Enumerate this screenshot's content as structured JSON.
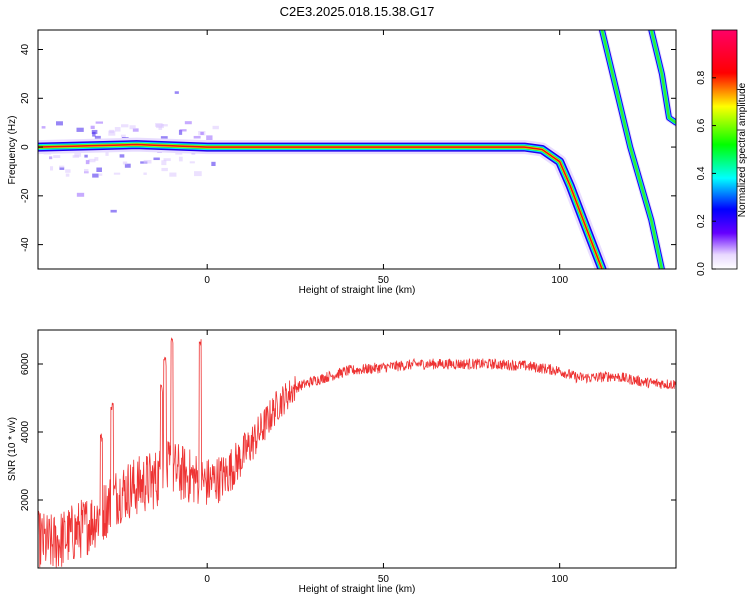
{
  "figure": {
    "title": "C2E3.2025.018.15.38.G17"
  },
  "colors": {
    "snr_line": "#ee3333",
    "axis": "#000000"
  },
  "chart_data": [
    {
      "type": "heatmap",
      "name": "spectrogram",
      "title": "",
      "xlabel": "Height of straight line (km)",
      "ylabel": "Frequency (Hz)",
      "xlim": [
        -48,
        133
      ],
      "ylim": [
        -50,
        48
      ],
      "x_ticks": [
        0,
        50,
        100
      ],
      "y_ticks": [
        -40,
        -20,
        0,
        20,
        40
      ],
      "colorbar": {
        "label": "Normalized spectral amplitude",
        "range": [
          0.0,
          1.0
        ],
        "ticks": [
          "0.0",
          "0.2",
          "0.4",
          "0.6",
          "0.8"
        ],
        "colormap": "rainbow (violet-blue-cyan-green-yellow-red-magenta)"
      },
      "ridges": [
        {
          "name": "main-ridge",
          "points": [
            [
              -48,
              0
            ],
            [
              -20,
              1
            ],
            [
              0,
              0
            ],
            [
              50,
              0
            ],
            [
              90,
              0
            ],
            [
              95,
              -1
            ],
            [
              100,
              -6
            ],
            [
              103,
              -16
            ],
            [
              108,
              -35
            ],
            [
              112,
              -50
            ]
          ],
          "amplitude": 0.9
        },
        {
          "name": "image-ridge-1",
          "points": [
            [
              112,
              48
            ],
            [
              120,
              0
            ],
            [
              126,
              -30
            ],
            [
              129,
              -50
            ]
          ],
          "amplitude": 0.5
        },
        {
          "name": "image-ridge-2",
          "points": [
            [
              126,
              48
            ],
            [
              129,
              30
            ],
            [
              131,
              12
            ],
            [
              133,
              10
            ]
          ],
          "amplitude": 0.45
        }
      ]
    },
    {
      "type": "line",
      "name": "snr",
      "title": "",
      "xlabel": "Height of straight line (km)",
      "ylabel": "SNR (10 * v/v)",
      "xlim": [
        -48,
        133
      ],
      "ylim": [
        0,
        7000
      ],
      "x_ticks": [
        0,
        50,
        100
      ],
      "y_ticks": [
        2000,
        4000,
        6000
      ],
      "series": [
        {
          "name": "SNR",
          "x": [
            -48,
            -44,
            -40,
            -35,
            -30,
            -25,
            -20,
            -15,
            -10,
            -5,
            0,
            5,
            10,
            15,
            20,
            25,
            30,
            40,
            50,
            60,
            70,
            80,
            90,
            100,
            105,
            110,
            115,
            120,
            125,
            133
          ],
          "y": [
            800,
            700,
            900,
            1200,
            1600,
            2200,
            2400,
            2600,
            2900,
            2700,
            2500,
            2700,
            3300,
            4000,
            4800,
            5300,
            5500,
            5800,
            5900,
            6000,
            6000,
            6000,
            5950,
            5800,
            5600,
            5600,
            5650,
            5550,
            5450,
            5400
          ],
          "spikes": [
            [
              -10,
              6900
            ],
            [
              -2,
              6800
            ],
            [
              -12,
              6200
            ],
            [
              -27,
              4900
            ],
            [
              -30,
              4000
            ],
            [
              -13,
              5400
            ]
          ]
        }
      ]
    }
  ]
}
